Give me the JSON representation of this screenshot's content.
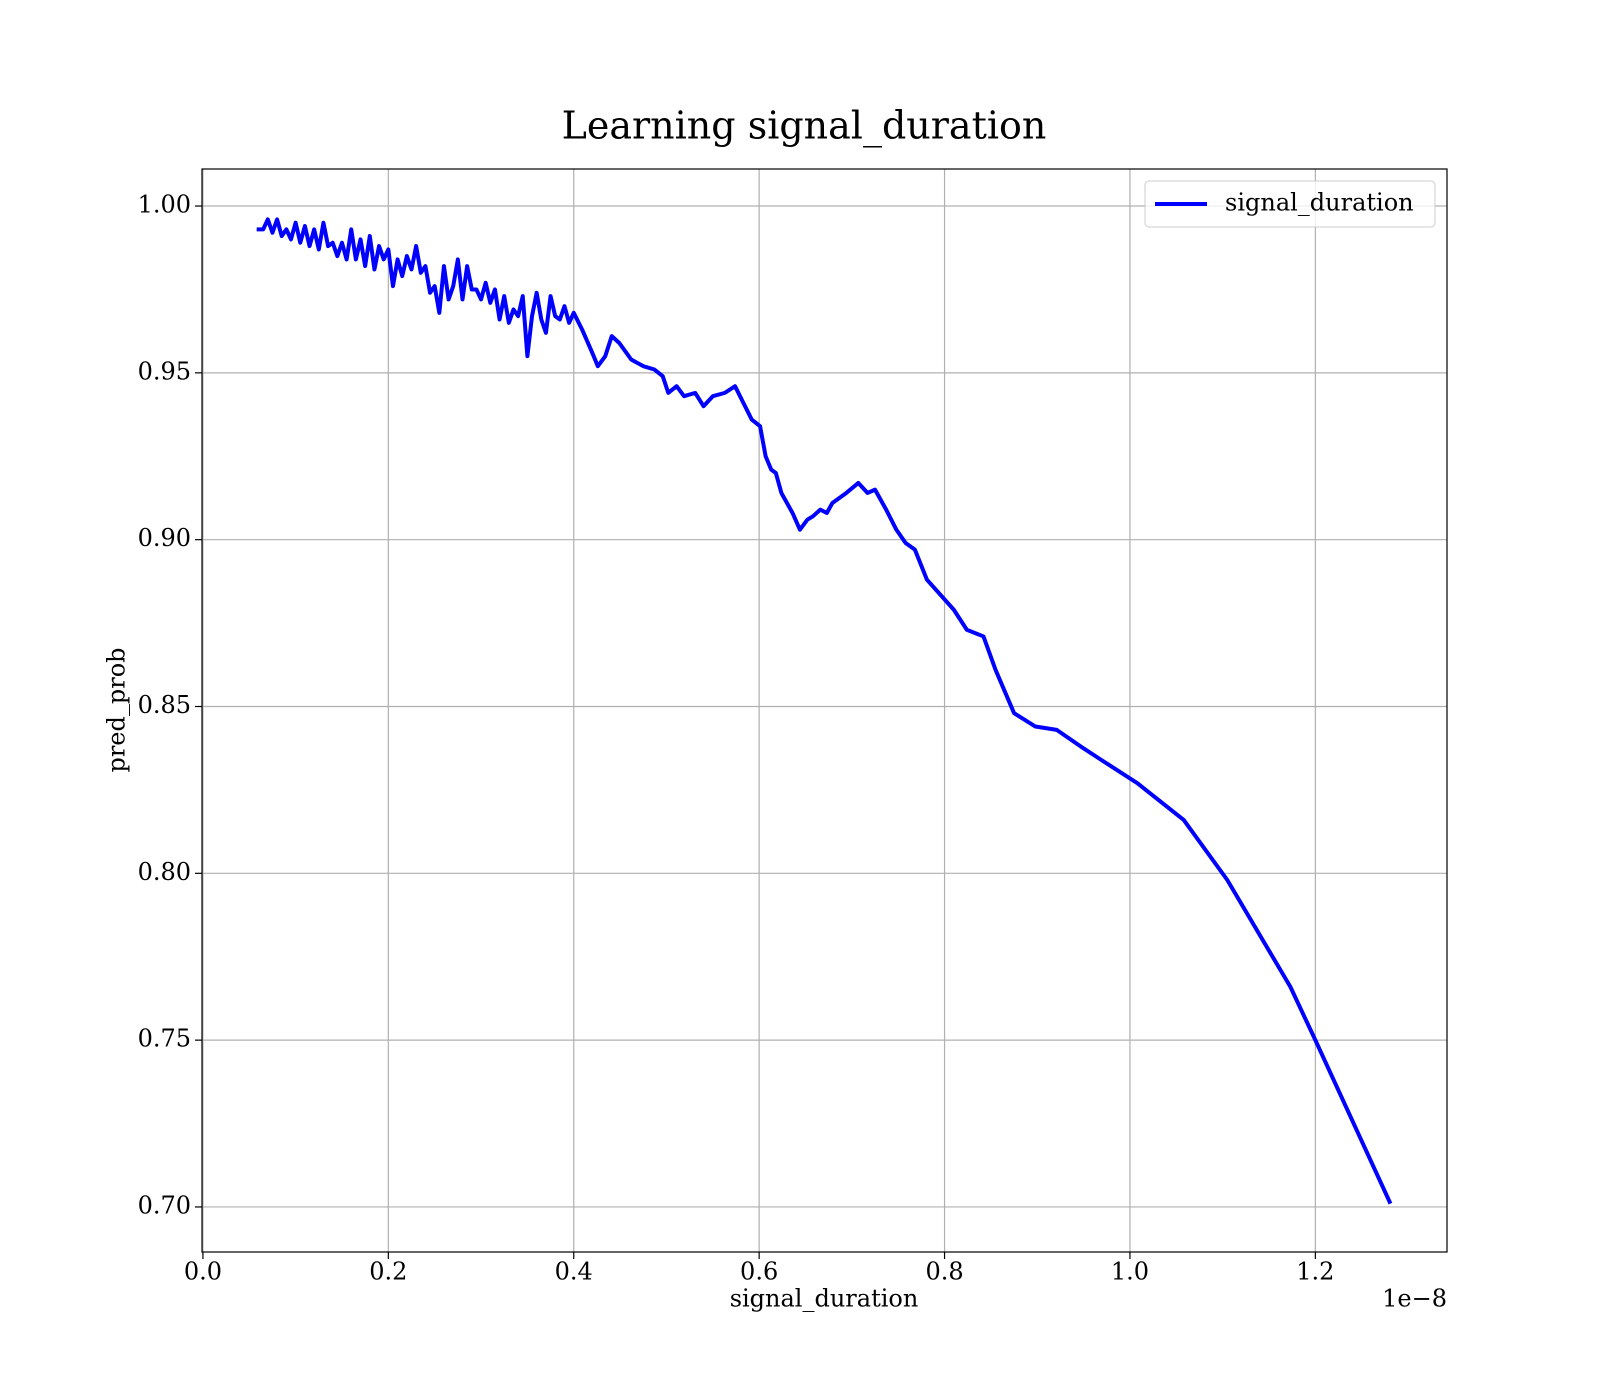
{
  "chart_data": {
    "type": "line",
    "title": "Learning signal_duration",
    "x_label": "signal_duration",
    "y_label": "pred_prob",
    "x_offset_label": "1e−8",
    "xlim": [
      -0.001,
      1.342
    ],
    "ylim": [
      0.6865,
      1.0111
    ],
    "xticks": [
      {
        "value": 0,
        "label": "0.0"
      },
      0.2,
      0.4,
      0.6,
      0.8,
      {
        "value": 1,
        "label": "1.0"
      },
      1.2
    ],
    "yticks": [
      {
        "value": 0.7,
        "label": "0.70"
      },
      0.75,
      {
        "value": 0.8,
        "label": "0.80"
      },
      0.85,
      {
        "value": 0.9,
        "label": "0.90"
      },
      0.95,
      {
        "value": 1,
        "label": "1.00"
      }
    ],
    "grid": true,
    "legend": "upper right",
    "x": [
      0.058,
      0.065,
      0.07,
      0.075,
      0.08,
      0.085,
      0.09,
      0.095,
      0.1,
      0.105,
      0.11,
      0.115,
      0.12,
      0.125,
      0.13,
      0.135,
      0.14,
      0.145,
      0.15,
      0.155,
      0.16,
      0.165,
      0.17,
      0.175,
      0.18,
      0.185,
      0.19,
      0.195,
      0.2,
      0.205,
      0.21,
      0.215,
      0.22,
      0.225,
      0.23,
      0.235,
      0.24,
      0.245,
      0.25,
      0.255,
      0.26,
      0.265,
      0.27,
      0.275,
      0.28,
      0.285,
      0.29,
      0.295,
      0.3,
      0.305,
      0.31,
      0.315,
      0.32,
      0.325,
      0.33,
      0.335,
      0.34,
      0.345,
      0.35,
      0.355,
      0.36,
      0.365,
      0.37,
      0.375,
      0.38,
      0.385,
      0.39,
      0.395,
      0.4,
      0.409,
      0.42,
      0.426,
      0.434,
      0.441,
      0.449,
      0.462,
      0.475,
      0.487,
      0.496,
      0.502,
      0.511,
      0.519,
      0.531,
      0.54,
      0.55,
      0.563,
      0.574,
      0.583,
      0.592,
      0.601,
      0.607,
      0.613,
      0.618,
      0.624,
      0.636,
      0.644,
      0.652,
      0.658,
      0.666,
      0.673,
      0.679,
      0.694,
      0.707,
      0.717,
      0.725,
      0.737,
      0.748,
      0.758,
      0.768,
      0.781,
      0.81,
      0.824,
      0.842,
      0.855,
      0.875,
      0.898,
      0.921,
      0.947,
      0.969,
      1.008,
      1.058,
      1.105,
      1.173,
      1.2,
      1.281
    ],
    "series": [
      {
        "name": "signal_duration",
        "color": "#0000ff",
        "values": [
          0.993,
          0.993,
          0.996,
          0.992,
          0.996,
          0.991,
          0.993,
          0.99,
          0.995,
          0.989,
          0.994,
          0.988,
          0.993,
          0.987,
          0.995,
          0.988,
          0.989,
          0.985,
          0.989,
          0.984,
          0.993,
          0.984,
          0.99,
          0.982,
          0.991,
          0.981,
          0.988,
          0.984,
          0.987,
          0.976,
          0.984,
          0.979,
          0.985,
          0.981,
          0.988,
          0.98,
          0.982,
          0.974,
          0.976,
          0.968,
          0.982,
          0.972,
          0.976,
          0.984,
          0.972,
          0.982,
          0.975,
          0.975,
          0.972,
          0.977,
          0.971,
          0.975,
          0.966,
          0.973,
          0.965,
          0.969,
          0.967,
          0.973,
          0.955,
          0.967,
          0.974,
          0.966,
          0.962,
          0.973,
          0.967,
          0.966,
          0.97,
          0.965,
          0.968,
          0.963,
          0.956,
          0.952,
          0.955,
          0.961,
          0.959,
          0.954,
          0.952,
          0.951,
          0.949,
          0.944,
          0.946,
          0.943,
          0.944,
          0.94,
          0.943,
          0.944,
          0.946,
          0.941,
          0.936,
          0.934,
          0.925,
          0.921,
          0.92,
          0.914,
          0.908,
          0.903,
          0.906,
          0.907,
          0.909,
          0.908,
          0.911,
          0.914,
          0.917,
          0.914,
          0.915,
          0.909,
          0.903,
          0.899,
          0.897,
          0.888,
          0.879,
          0.873,
          0.871,
          0.861,
          0.848,
          0.844,
          0.843,
          0.838,
          0.834,
          0.827,
          0.816,
          0.798,
          0.766,
          0.75,
          0.701
        ]
      }
    ]
  }
}
